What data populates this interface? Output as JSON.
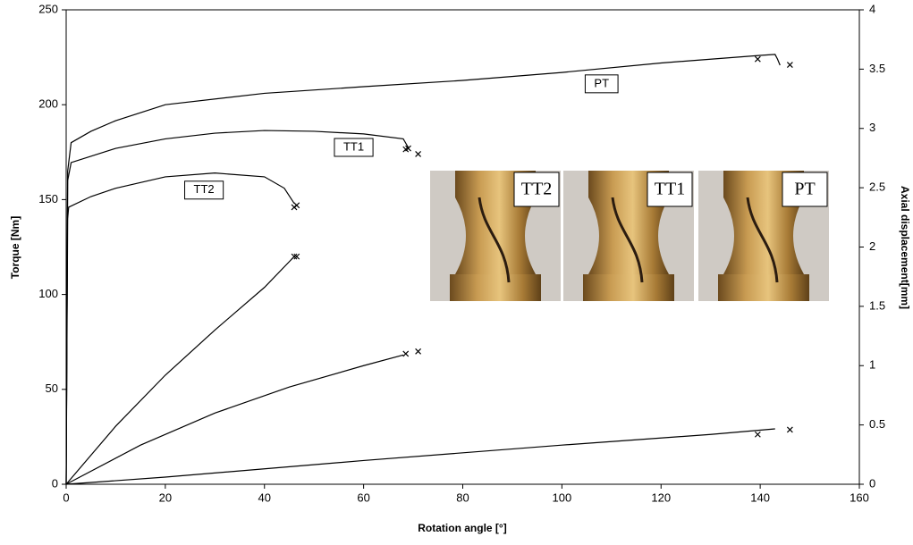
{
  "chart_data": {
    "type": "line",
    "x_label": "Rotation angle [°]",
    "y_label": "Torque [Nm]",
    "y2_label": "Axial displacement[mm]",
    "xlim": [
      0,
      160
    ],
    "xticks": [
      0,
      20,
      40,
      60,
      80,
      100,
      120,
      140,
      160
    ],
    "ylim": [
      0,
      250
    ],
    "yticks": [
      0,
      50,
      100,
      150,
      200,
      250
    ],
    "y2lim": [
      0,
      4
    ],
    "y2ticks": [
      0,
      0.5,
      1,
      1.5,
      2,
      2.5,
      3,
      3.5,
      4
    ],
    "series": [
      {
        "color": "#000000",
        "x": [
          0,
          0.3,
          1,
          5,
          10,
          20,
          40,
          60,
          80,
          100,
          120,
          140,
          143,
          143.5,
          144
        ],
        "values": [
          0,
          165,
          180,
          186,
          191.6,
          200,
          206,
          209.5,
          212.8,
          217,
          222,
          226,
          226.5,
          224,
          220.8
        ]
      },
      {
        "color": "#000000",
        "x": [
          0,
          0.3,
          1,
          10,
          20,
          30,
          40,
          50,
          60,
          68,
          69
        ],
        "values": [
          0,
          160,
          169.5,
          177,
          182,
          185,
          186.4,
          186,
          184.6,
          182,
          177.5
        ]
      },
      {
        "color": "#000000",
        "x": [
          0,
          0.3,
          0.5,
          5,
          10,
          20,
          30,
          40,
          44,
          46
        ],
        "values": [
          0,
          140,
          146,
          151.6,
          156,
          162,
          164,
          162,
          156,
          148
        ]
      },
      {
        "color": "#000000",
        "axis": "y2",
        "x": [
          0,
          10,
          20,
          30,
          40,
          46
        ],
        "values": [
          0,
          0.49,
          0.92,
          1.3,
          1.66,
          1.92
        ]
      },
      {
        "color": "#000000",
        "axis": "y2",
        "x": [
          0,
          15,
          30,
          45,
          60,
          68
        ],
        "values": [
          0,
          0.33,
          0.6,
          0.82,
          1.0,
          1.09
        ]
      },
      {
        "color": "#000000",
        "axis": "y2",
        "x": [
          0,
          20,
          60,
          100,
          130,
          143
        ],
        "values": [
          0,
          0.06,
          0.2,
          0.33,
          0.42,
          0.467
        ]
      },
      {
        "color": "#000000",
        "marker": "x",
        "x": [
          139.5,
          146,
          68.5,
          69,
          71,
          46,
          46.5
        ],
        "values": [
          224,
          221,
          176.5,
          177,
          174,
          146,
          147
        ]
      },
      {
        "color": "#000000",
        "marker": "x",
        "axis": "y2",
        "x": [
          46,
          46.5,
          68.5,
          71,
          139.5,
          146
        ],
        "values": [
          1.92,
          1.92,
          1.1,
          1.12,
          0.42,
          0.46
        ]
      }
    ],
    "annotations": [
      {
        "text": "PT",
        "x": 108,
        "y": 211
      },
      {
        "text": "TT1",
        "x": 58,
        "y": 177.5
      },
      {
        "text": "TT2",
        "x": 27.8,
        "y": 155
      }
    ],
    "photos": [
      {
        "label": "TT2"
      },
      {
        "label": "TT1"
      },
      {
        "label": "PT"
      }
    ]
  }
}
